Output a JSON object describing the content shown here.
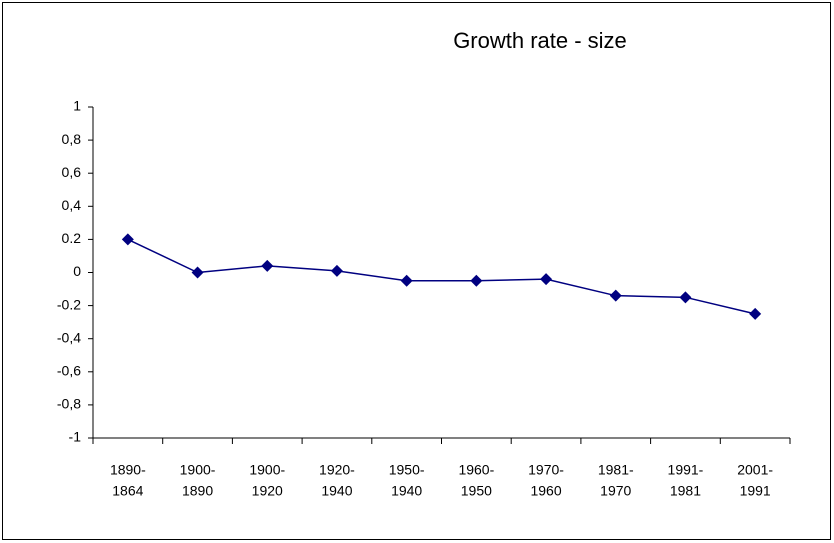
{
  "chart_data": {
    "type": "line",
    "title": "Growth rate - size",
    "categories": [
      [
        "1890-",
        "1864"
      ],
      [
        "1900-",
        "1890"
      ],
      [
        "1900-",
        "1920"
      ],
      [
        "1920-",
        "1940"
      ],
      [
        "1950-",
        "1940"
      ],
      [
        "1960-",
        "1950"
      ],
      [
        "1970-",
        "1960"
      ],
      [
        "1981-",
        "1970"
      ],
      [
        "1991-",
        "1981"
      ],
      [
        "2001-",
        "1991"
      ]
    ],
    "values": [
      0.2,
      0,
      0.04,
      0.01,
      -0.05,
      -0.05,
      -0.04,
      -0.14,
      -0.15,
      -0.25
    ],
    "color": "#000080",
    "ylim": [
      -1,
      1
    ],
    "yticks": [
      -1,
      {
        "value": -0.8,
        "label": "-0,8"
      },
      {
        "value": -0.6,
        "label": "-0,6"
      },
      {
        "value": -0.4,
        "label": "-0,4"
      },
      -0.2,
      0,
      0.2,
      {
        "value": 0.4,
        "label": "0,4"
      },
      {
        "value": 0.6,
        "label": "0,6"
      },
      {
        "value": 0.8,
        "label": "0,8"
      },
      1
    ]
  }
}
